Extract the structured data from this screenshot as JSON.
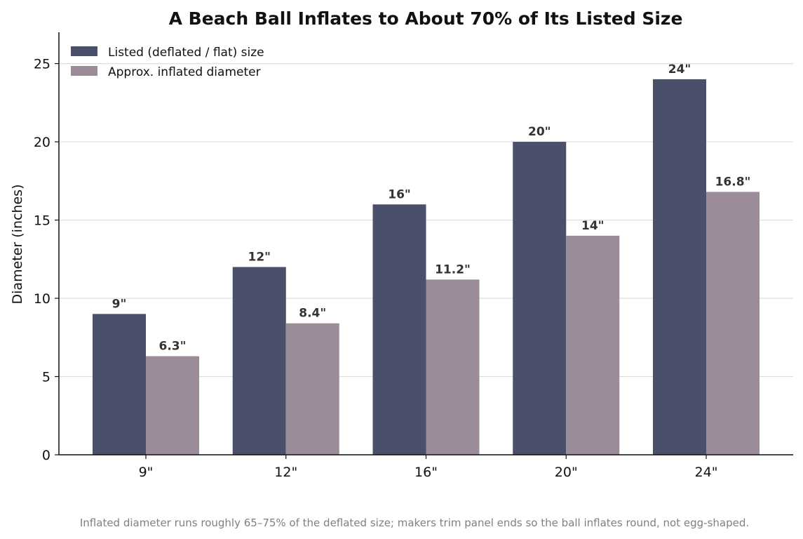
{
  "chart_data": {
    "type": "bar",
    "title": "A Beach Ball Inflates to About 70% of Its Listed Size",
    "xlabel": "",
    "ylabel": "Diameter (inches)",
    "categories": [
      "9\"",
      "12\"",
      "16\"",
      "20\"",
      "24\""
    ],
    "series": [
      {
        "name": "Listed (deflated / flat) size",
        "values": [
          9,
          12,
          16,
          20,
          24
        ],
        "labels": [
          "9\"",
          "12\"",
          "16\"",
          "20\"",
          "24\""
        ],
        "color": "#4a4f6a"
      },
      {
        "name": "Approx. inflated diameter",
        "values": [
          6.3,
          8.4,
          11.2,
          14,
          16.8
        ],
        "labels": [
          "6.3\"",
          "8.4\"",
          "11.2\"",
          "14\"",
          "16.8\""
        ],
        "color": "#9c8c99"
      }
    ],
    "ylim": [
      0,
      27
    ],
    "yticks": [
      0,
      5,
      10,
      15,
      20,
      25
    ],
    "grid": "horizontal",
    "legend_position": "top-left",
    "note": "Inflated diameter runs roughly 65–75% of the deflated size; makers trim panel ends so the ball inflates round, not egg-shaped."
  }
}
